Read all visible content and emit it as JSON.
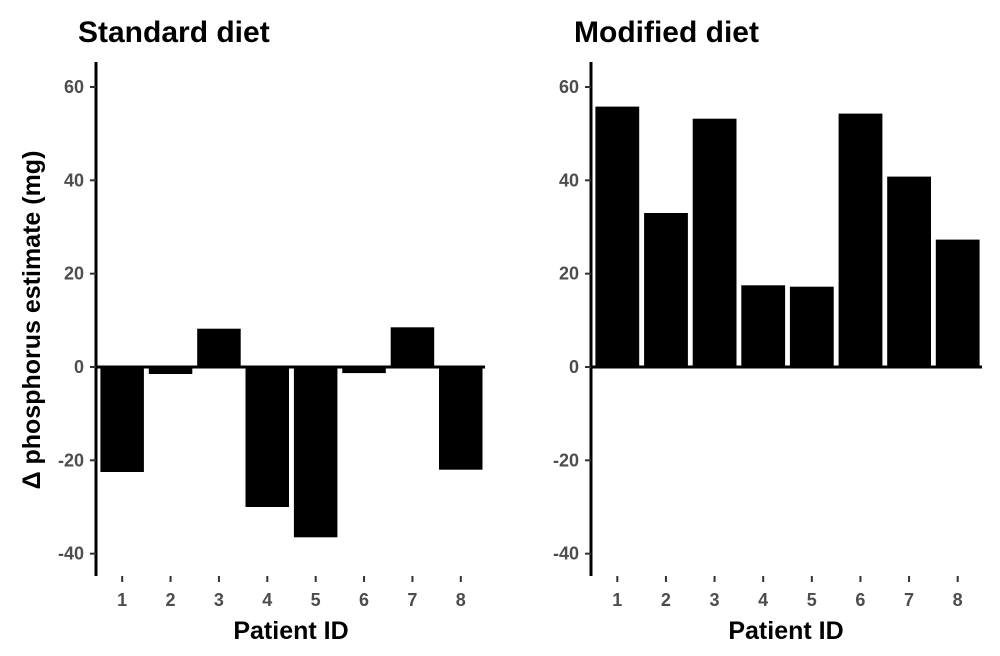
{
  "chart_data": [
    {
      "type": "bar",
      "title": "Standard diet",
      "xlabel": "Patient ID",
      "ylabel": "Δ phosphorus estimate (mg)",
      "categories": [
        "1",
        "2",
        "3",
        "4",
        "5",
        "6",
        "7",
        "8"
      ],
      "values": [
        -22.5,
        -1.5,
        8.2,
        -30.0,
        -36.5,
        -1.3,
        8.5,
        -22.0
      ],
      "ylim": [
        -45,
        65
      ],
      "yticks": [
        "60",
        "40",
        "20",
        "0",
        "-20",
        "-40"
      ],
      "grid": false,
      "bar_color": "#000000"
    },
    {
      "type": "bar",
      "title": "Modified diet",
      "xlabel": "Patient ID",
      "ylabel": "",
      "categories": [
        "1",
        "2",
        "3",
        "4",
        "5",
        "6",
        "7",
        "8"
      ],
      "values": [
        55.8,
        33.0,
        53.2,
        17.5,
        17.2,
        54.3,
        40.8,
        27.3
      ],
      "ylim": [
        -45,
        65
      ],
      "yticks": [
        "60",
        "40",
        "20",
        "0",
        "-20",
        "-40"
      ],
      "grid": false,
      "bar_color": "#000000"
    }
  ]
}
